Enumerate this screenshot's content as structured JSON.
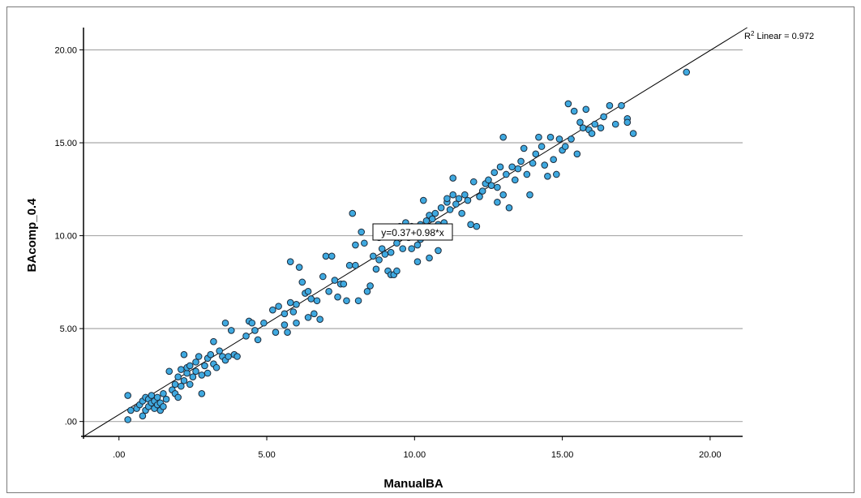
{
  "chart_data": {
    "type": "scatter",
    "xlabel": "ManualBA",
    "ylabel": "BAcomp_0.4",
    "xlim": [
      -1.2,
      21.1
    ],
    "ylim": [
      -0.8,
      21.2
    ],
    "x_ticks": [
      0,
      5,
      10,
      15,
      20
    ],
    "x_tick_labels": [
      ".00",
      "5.00",
      "10.00",
      "15.00",
      "20.00"
    ],
    "y_ticks": [
      0,
      5,
      10,
      15,
      20
    ],
    "y_tick_labels": [
      ".00",
      "5.00",
      "10.00",
      "15.00",
      "20.00"
    ],
    "grid": "horizontal",
    "marker_color": "#3fa9e0",
    "marker_edge_color": "#1b2a3a",
    "fit": {
      "intercept": 0.37,
      "slope": 0.98,
      "equation_label": "y=0.37+0.98*x",
      "r2_label_prefix": "R",
      "r2_label_suffix": " Linear = 0.972"
    },
    "points": [
      [
        0.3,
        0.1
      ],
      [
        0.3,
        1.4
      ],
      [
        0.4,
        0.6
      ],
      [
        0.6,
        0.7
      ],
      [
        0.7,
        0.9
      ],
      [
        0.8,
        0.3
      ],
      [
        0.8,
        1.1
      ],
      [
        0.9,
        0.6
      ],
      [
        0.9,
        1.3
      ],
      [
        1.0,
        0.8
      ],
      [
        1.0,
        1.2
      ],
      [
        1.1,
        1.0
      ],
      [
        1.1,
        1.4
      ],
      [
        1.2,
        0.7
      ],
      [
        1.2,
        1.1
      ],
      [
        1.3,
        1.3
      ],
      [
        1.3,
        0.9
      ],
      [
        1.4,
        0.6
      ],
      [
        1.4,
        1.0
      ],
      [
        1.5,
        1.5
      ],
      [
        1.5,
        0.8
      ],
      [
        1.6,
        1.2
      ],
      [
        1.7,
        2.7
      ],
      [
        1.8,
        1.7
      ],
      [
        1.9,
        1.5
      ],
      [
        1.9,
        2.0
      ],
      [
        2.0,
        1.3
      ],
      [
        2.0,
        2.4
      ],
      [
        2.1,
        2.8
      ],
      [
        2.1,
        1.9
      ],
      [
        2.2,
        3.6
      ],
      [
        2.2,
        2.2
      ],
      [
        2.3,
        2.6
      ],
      [
        2.3,
        2.9
      ],
      [
        2.4,
        2.0
      ],
      [
        2.4,
        3.0
      ],
      [
        2.5,
        2.4
      ],
      [
        2.6,
        3.2
      ],
      [
        2.6,
        2.7
      ],
      [
        2.7,
        3.5
      ],
      [
        2.8,
        2.5
      ],
      [
        2.8,
        1.5
      ],
      [
        2.9,
        3.0
      ],
      [
        3.0,
        3.4
      ],
      [
        3.0,
        2.6
      ],
      [
        3.1,
        3.6
      ],
      [
        3.2,
        4.3
      ],
      [
        3.2,
        3.1
      ],
      [
        3.3,
        2.9
      ],
      [
        3.4,
        3.8
      ],
      [
        3.5,
        3.5
      ],
      [
        3.6,
        3.3
      ],
      [
        3.6,
        5.3
      ],
      [
        3.7,
        3.5
      ],
      [
        3.8,
        4.9
      ],
      [
        3.9,
        3.6
      ],
      [
        4.0,
        3.5
      ],
      [
        4.3,
        4.6
      ],
      [
        4.4,
        5.4
      ],
      [
        4.5,
        5.3
      ],
      [
        4.6,
        4.9
      ],
      [
        4.7,
        4.4
      ],
      [
        4.9,
        5.3
      ],
      [
        5.2,
        6.0
      ],
      [
        5.3,
        4.8
      ],
      [
        5.4,
        6.2
      ],
      [
        5.6,
        5.2
      ],
      [
        5.6,
        5.8
      ],
      [
        5.7,
        4.8
      ],
      [
        5.8,
        6.4
      ],
      [
        5.8,
        8.6
      ],
      [
        5.9,
        5.9
      ],
      [
        6.0,
        6.3
      ],
      [
        6.0,
        5.3
      ],
      [
        6.1,
        8.3
      ],
      [
        6.2,
        7.5
      ],
      [
        6.3,
        6.9
      ],
      [
        6.4,
        7.0
      ],
      [
        6.4,
        5.6
      ],
      [
        6.5,
        6.6
      ],
      [
        6.6,
        5.8
      ],
      [
        6.7,
        6.5
      ],
      [
        6.8,
        5.5
      ],
      [
        6.9,
        7.8
      ],
      [
        7.0,
        8.9
      ],
      [
        7.1,
        7.0
      ],
      [
        7.2,
        8.9
      ],
      [
        7.3,
        7.6
      ],
      [
        7.4,
        6.7
      ],
      [
        7.5,
        7.4
      ],
      [
        7.6,
        7.4
      ],
      [
        7.7,
        6.5
      ],
      [
        7.8,
        8.4
      ],
      [
        7.9,
        11.2
      ],
      [
        8.0,
        9.5
      ],
      [
        8.0,
        8.4
      ],
      [
        8.1,
        6.5
      ],
      [
        8.2,
        10.2
      ],
      [
        8.3,
        9.6
      ],
      [
        8.4,
        7.0
      ],
      [
        8.5,
        7.3
      ],
      [
        8.6,
        8.9
      ],
      [
        8.7,
        8.2
      ],
      [
        8.8,
        8.7
      ],
      [
        8.8,
        9.9
      ],
      [
        8.9,
        9.3
      ],
      [
        9.0,
        9.0
      ],
      [
        9.1,
        8.1
      ],
      [
        9.2,
        9.1
      ],
      [
        9.2,
        7.9
      ],
      [
        9.3,
        7.9
      ],
      [
        9.4,
        8.1
      ],
      [
        9.4,
        9.6
      ],
      [
        9.5,
        10.5
      ],
      [
        9.6,
        10.1
      ],
      [
        9.6,
        9.3
      ],
      [
        9.7,
        10.7
      ],
      [
        9.8,
        9.9
      ],
      [
        9.9,
        9.3
      ],
      [
        9.9,
        10.5
      ],
      [
        10.0,
        10.3
      ],
      [
        10.1,
        9.5
      ],
      [
        10.1,
        8.6
      ],
      [
        10.2,
        9.8
      ],
      [
        10.2,
        10.6
      ],
      [
        10.3,
        11.9
      ],
      [
        10.4,
        10.8
      ],
      [
        10.5,
        11.1
      ],
      [
        10.5,
        8.8
      ],
      [
        10.6,
        10.9
      ],
      [
        10.7,
        11.2
      ],
      [
        10.8,
        10.6
      ],
      [
        10.8,
        9.2
      ],
      [
        10.9,
        11.5
      ],
      [
        11.0,
        10.7
      ],
      [
        11.1,
        11.8
      ],
      [
        11.1,
        12.0
      ],
      [
        11.2,
        11.4
      ],
      [
        11.3,
        12.2
      ],
      [
        11.3,
        13.1
      ],
      [
        11.4,
        11.7
      ],
      [
        11.5,
        12.0
      ],
      [
        11.6,
        11.2
      ],
      [
        11.7,
        12.2
      ],
      [
        11.8,
        11.9
      ],
      [
        11.9,
        10.6
      ],
      [
        12.0,
        12.9
      ],
      [
        12.1,
        10.5
      ],
      [
        12.2,
        12.1
      ],
      [
        12.3,
        12.4
      ],
      [
        12.4,
        12.8
      ],
      [
        12.5,
        13.0
      ],
      [
        12.6,
        12.7
      ],
      [
        12.7,
        13.4
      ],
      [
        12.8,
        11.8
      ],
      [
        12.8,
        12.6
      ],
      [
        12.9,
        13.7
      ],
      [
        13.0,
        15.3
      ],
      [
        13.0,
        12.2
      ],
      [
        13.1,
        13.3
      ],
      [
        13.2,
        11.5
      ],
      [
        13.3,
        13.7
      ],
      [
        13.4,
        13.0
      ],
      [
        13.5,
        13.6
      ],
      [
        13.6,
        14.0
      ],
      [
        13.7,
        14.7
      ],
      [
        13.8,
        13.3
      ],
      [
        13.9,
        12.2
      ],
      [
        14.0,
        13.9
      ],
      [
        14.1,
        14.4
      ],
      [
        14.2,
        15.3
      ],
      [
        14.3,
        14.8
      ],
      [
        14.4,
        13.8
      ],
      [
        14.5,
        13.2
      ],
      [
        14.6,
        15.3
      ],
      [
        14.7,
        14.1
      ],
      [
        14.8,
        13.3
      ],
      [
        14.9,
        15.2
      ],
      [
        15.0,
        14.6
      ],
      [
        15.1,
        14.8
      ],
      [
        15.2,
        17.1
      ],
      [
        15.3,
        15.2
      ],
      [
        15.4,
        16.7
      ],
      [
        15.5,
        14.4
      ],
      [
        15.6,
        16.1
      ],
      [
        15.7,
        15.8
      ],
      [
        15.8,
        16.8
      ],
      [
        15.9,
        15.7
      ],
      [
        16.0,
        15.5
      ],
      [
        16.1,
        16.0
      ],
      [
        16.3,
        15.8
      ],
      [
        16.4,
        16.4
      ],
      [
        16.6,
        17.0
      ],
      [
        16.8,
        16.0
      ],
      [
        17.0,
        17.0
      ],
      [
        17.2,
        16.3
      ],
      [
        17.2,
        16.1
      ],
      [
        17.4,
        15.5
      ],
      [
        19.2,
        18.8
      ]
    ]
  }
}
